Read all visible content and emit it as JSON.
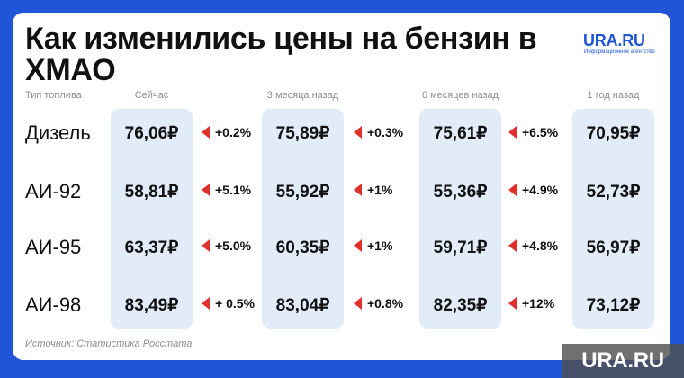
{
  "title": "Как изменились цены на бензин в ХМАО",
  "brand_logo": {
    "main": "URA.RU",
    "sub": "Информационное агентство"
  },
  "headers": {
    "fuel": "Тип топлива",
    "now": "Сейчас",
    "m3": "3 месяца назад",
    "m6": "6 месяцев назад",
    "y1": "1 год назад"
  },
  "rows": [
    {
      "fuel": "Дизель",
      "now": "76,06₽",
      "chg1": "+0.2%",
      "m3": "75,89₽",
      "chg2": "+0.3%",
      "m6": "75,61₽",
      "chg3": "+6.5%",
      "y1": "70,95₽"
    },
    {
      "fuel": "АИ-92",
      "now": "58,81₽",
      "chg1": "+5.1%",
      "m3": "55,92₽",
      "chg2": "+1%",
      "m6": "55,36₽",
      "chg3": "+4.9%",
      "y1": "52,73₽"
    },
    {
      "fuel": "АИ-95",
      "now": "63,37₽",
      "chg1": "+5.0%",
      "m3": "60,35₽",
      "chg2": "+1%",
      "m6": "59,71₽",
      "chg3": "+4.8%",
      "y1": "56,97₽"
    },
    {
      "fuel": "АИ-98",
      "now": "83,49₽",
      "chg1": "+ 0.5%",
      "m3": "83,04₽",
      "chg2": "+0.8%",
      "m6": "82,35₽",
      "chg3": "+12%",
      "y1": "73,12₽"
    }
  ],
  "source": "Источник: Статистика Росстата",
  "watermark": "URA.RU",
  "colors": {
    "background": "#1f55d6",
    "brand": "#1f55d6",
    "column_band": "#e2ebf8",
    "arrow": "#e0302c"
  },
  "icons": {
    "change_marker": "red-left-triangle-icon"
  }
}
